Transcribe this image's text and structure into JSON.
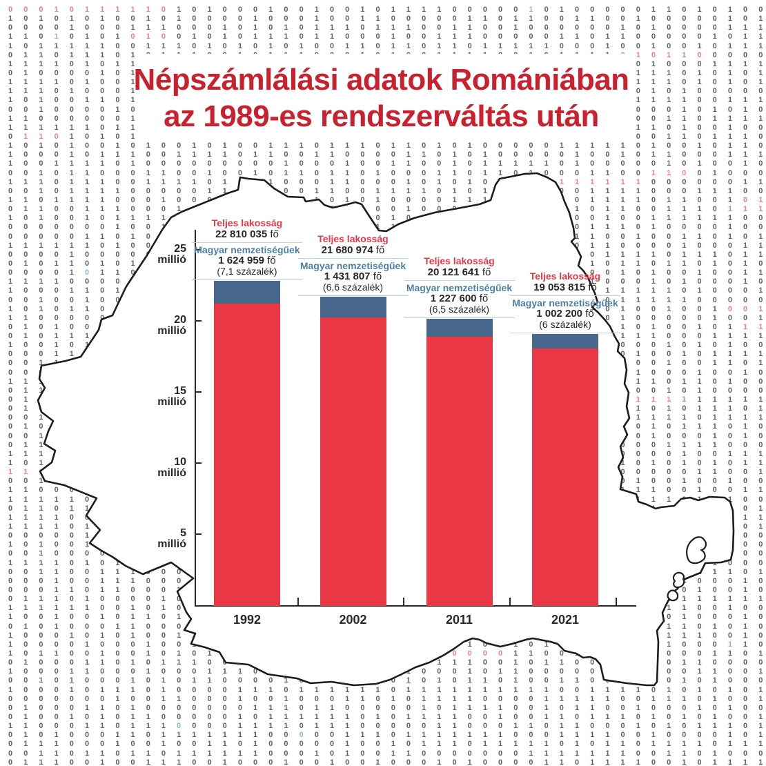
{
  "title": {
    "line1": "Népszámlálási adatok Romániában",
    "line2": "az 1989-es rendszerváltás után"
  },
  "chart_data": {
    "type": "bar",
    "stacked": true,
    "categories": [
      "1992",
      "2002",
      "2011",
      "2021"
    ],
    "series": [
      {
        "name": "Teljes lakosság",
        "values": [
          22810035,
          21680974,
          20121641,
          19053815
        ],
        "color": "#ea3746"
      },
      {
        "name": "Magyar nemzetiségűek",
        "values": [
          1624959,
          1431807,
          1227600,
          1002200
        ],
        "color": "#47688c"
      }
    ],
    "hungarian_percents": [
      "7,1 százalék",
      "6,6 százalék",
      "6,5 százalék",
      "6 százalék"
    ],
    "unit_suffix": "fő",
    "ylabel_unit": "millió",
    "yticks": [
      {
        "label": "25",
        "unit": "millió",
        "value": 25000000
      },
      {
        "label": "20",
        "unit": "millió",
        "value": 20000000
      },
      {
        "label": "15",
        "unit": "millió",
        "value": 15000000
      },
      {
        "label": "10",
        "unit": "millió",
        "value": 10000000
      },
      {
        "label": "5",
        "unit": "millió",
        "value": 5000000
      }
    ],
    "ylim": [
      0,
      26400000
    ],
    "grid": false,
    "legend": "none"
  },
  "annotations": [
    {
      "total_label": "Teljes lakosság",
      "total_value": "22 810 035",
      "unit": "fő",
      "magyar_label": "Magyar nemzetiségűek",
      "magyar_value": "1 624 959",
      "percent": "(7,1 százalék)"
    },
    {
      "total_label": "Teljes lakosság",
      "total_value": "21 680 974",
      "unit": "fő",
      "magyar_label": "Magyar nemzetiségűek",
      "magyar_value": "1 431 807",
      "percent": "(6,6 százalék)"
    },
    {
      "total_label": "Teljes lakosság",
      "total_value": "20 121 641",
      "unit": "fő",
      "magyar_label": "Magyar nemzetiségűek",
      "magyar_value": "1 227 600",
      "percent": "(6,5 százalék)"
    },
    {
      "total_label": "Teljes lakosság",
      "total_value": "19 053 815",
      "unit": "fő",
      "magyar_label": "Magyar nemzetiségűek",
      "magyar_value": "1 002 200",
      "percent": "(6 százalék)"
    }
  ],
  "background": {
    "pattern": "random-binary-digits",
    "digits": [
      "0",
      "1"
    ],
    "digit_color": "#5f6163",
    "red_digit_color": "#ee7e88",
    "blue_digit_color": "#8cb6da",
    "rows": 84,
    "cols": 50
  },
  "map": {
    "name": "romania-outline",
    "stroke": "#1c1c1c",
    "fill": "#ffffff"
  },
  "colors": {
    "title_red": "#c8222f",
    "bar_red": "#ea3746",
    "bar_blue": "#47688c",
    "label_red": "#e73743",
    "label_blue": "#4c80a8",
    "axis_dark": "#2b2728",
    "divider_blue": "#bed2de"
  }
}
